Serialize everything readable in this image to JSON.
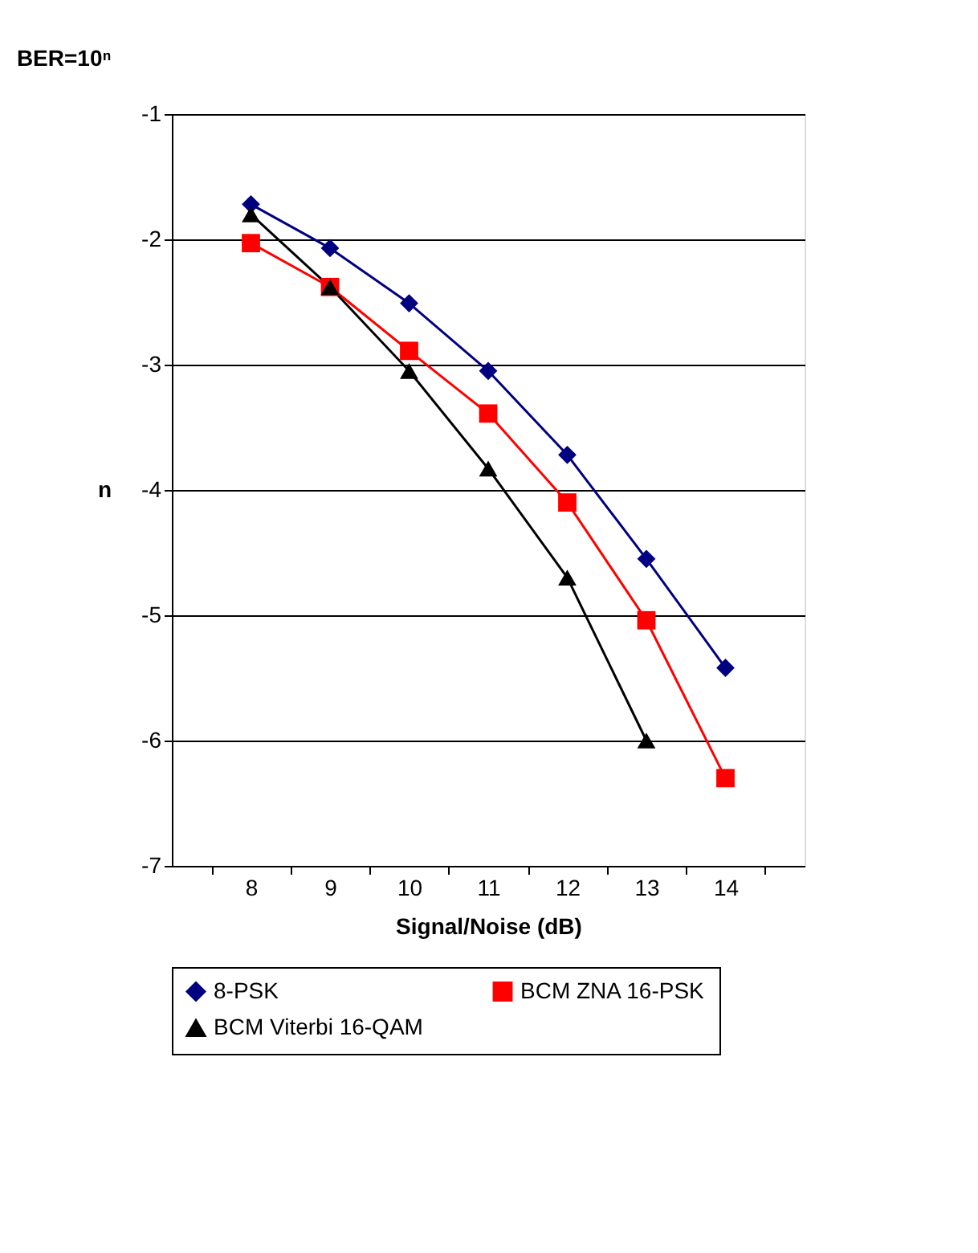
{
  "chart_data": {
    "type": "line",
    "title": "BER=10ⁿ",
    "xlabel": "Signal/Noise (dB)",
    "ylabel": "n",
    "categories": [
      "8",
      "9",
      "10",
      "11",
      "12",
      "13",
      "14"
    ],
    "series": [
      {
        "name": "8-PSK",
        "color": "#000080",
        "marker": "diamond",
        "values": [
          -1.72,
          -2.07,
          -2.51,
          -3.05,
          -3.72,
          -4.55,
          -5.42
        ]
      },
      {
        "name": "BCM ZNA 16-PSK",
        "color": "#ff0000",
        "marker": "square",
        "values": [
          -2.03,
          -2.38,
          -2.89,
          -3.39,
          -4.1,
          -5.04,
          -6.3
        ]
      },
      {
        "name": "BCM Viterbi 16-QAM",
        "color": "#000000",
        "marker": "triangle",
        "values": [
          -1.8,
          -2.38,
          -3.05,
          -3.83,
          -4.7,
          -6.0,
          null
        ]
      }
    ],
    "ylim": [
      -7,
      -1
    ],
    "yticks": [
      -7,
      -6,
      -5,
      -4,
      -3,
      -2,
      -1
    ],
    "grid": "y",
    "legend": "bottom",
    "line_style": "solid"
  }
}
